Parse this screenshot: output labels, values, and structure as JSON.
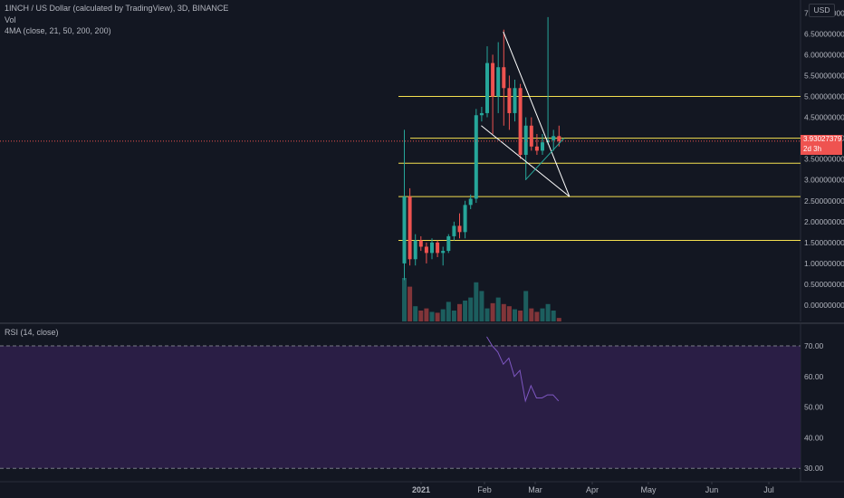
{
  "header": {
    "symbol_line": "1INCH / US Dollar (calculated by TradingView), 3D, BINANCE",
    "vol_label": "Vol",
    "ma_label": "4MA (close, 21, 50, 200, 200)",
    "rsi_label": "RSI (14, close)"
  },
  "currency_badge": "USD",
  "last_price": {
    "value": "3.93027379",
    "countdown": "2d 3h"
  },
  "colors": {
    "background": "#131722",
    "up": "#26a69a",
    "down": "#ef5350",
    "level_line": "#f5e050",
    "rsi_band": "#2a1e45",
    "rsi_line": "#7e57c2"
  },
  "chart_data": [
    {
      "type": "candlestick",
      "title": "1INCH / US Dollar (calculated by TradingView), 3D, BINANCE",
      "xlabel": "",
      "ylabel": "",
      "x_ticks": [
        "2021",
        "Feb",
        "Mar",
        "Apr",
        "May",
        "Jun",
        "Jul"
      ],
      "y_ticks": [
        "0.00000000",
        "0.50000000",
        "1.00000000",
        "1.50000000",
        "2.00000000",
        "2.50000000",
        "3.00000000",
        "3.50000000",
        "4.00000000",
        "4.50000000",
        "5.00000000",
        "5.50000000",
        "6.00000000",
        "6.50000000",
        "7.00000000"
      ],
      "ylim": [
        -0.25,
        7.25
      ],
      "grid": false,
      "series": [
        {
          "name": "1INCH",
          "candles": [
            {
              "o": 1.0,
              "h": 4.2,
              "l": 0.6,
              "c": 2.6
            },
            {
              "o": 2.6,
              "h": 2.8,
              "l": 0.95,
              "c": 1.1
            },
            {
              "o": 1.1,
              "h": 1.7,
              "l": 0.95,
              "c": 1.55
            },
            {
              "o": 1.55,
              "h": 1.65,
              "l": 1.3,
              "c": 1.4
            },
            {
              "o": 1.4,
              "h": 1.5,
              "l": 1.0,
              "c": 1.25
            },
            {
              "o": 1.25,
              "h": 1.6,
              "l": 1.1,
              "c": 1.5
            },
            {
              "o": 1.5,
              "h": 1.55,
              "l": 1.15,
              "c": 1.25
            },
            {
              "o": 1.25,
              "h": 1.4,
              "l": 0.95,
              "c": 1.3
            },
            {
              "o": 1.3,
              "h": 1.7,
              "l": 1.25,
              "c": 1.65
            },
            {
              "o": 1.65,
              "h": 2.0,
              "l": 1.55,
              "c": 1.9
            },
            {
              "o": 1.9,
              "h": 2.2,
              "l": 1.6,
              "c": 1.75
            },
            {
              "o": 1.75,
              "h": 2.5,
              "l": 1.6,
              "c": 2.4
            },
            {
              "o": 2.4,
              "h": 2.65,
              "l": 2.3,
              "c": 2.55
            },
            {
              "o": 2.55,
              "h": 4.7,
              "l": 2.45,
              "c": 4.55
            },
            {
              "o": 4.55,
              "h": 4.75,
              "l": 4.4,
              "c": 4.6
            },
            {
              "o": 4.6,
              "h": 6.2,
              "l": 4.5,
              "c": 5.8
            },
            {
              "o": 5.8,
              "h": 6.0,
              "l": 4.1,
              "c": 5.0
            },
            {
              "o": 5.0,
              "h": 6.3,
              "l": 4.6,
              "c": 5.7
            },
            {
              "o": 5.7,
              "h": 6.6,
              "l": 4.3,
              "c": 5.2
            },
            {
              "o": 5.2,
              "h": 5.5,
              "l": 4.2,
              "c": 4.6
            },
            {
              "o": 4.6,
              "h": 5.4,
              "l": 4.4,
              "c": 5.2
            },
            {
              "o": 5.2,
              "h": 5.3,
              "l": 3.5,
              "c": 3.6
            },
            {
              "o": 3.6,
              "h": 4.5,
              "l": 3.0,
              "c": 4.3
            },
            {
              "o": 4.3,
              "h": 4.5,
              "l": 3.7,
              "c": 3.8
            },
            {
              "o": 3.8,
              "h": 4.1,
              "l": 3.6,
              "c": 3.7
            },
            {
              "o": 3.7,
              "h": 4.1,
              "l": 3.6,
              "c": 3.9
            },
            {
              "o": 3.9,
              "h": 6.9,
              "l": 3.85,
              "c": 3.95
            },
            {
              "o": 3.95,
              "h": 4.2,
              "l": 3.7,
              "c": 4.05
            },
            {
              "o": 4.05,
              "h": 4.3,
              "l": 3.8,
              "c": 3.93
            }
          ]
        }
      ],
      "horizontal_levels": [
        5.0,
        4.0,
        3.4,
        2.6,
        1.55
      ],
      "trend_lines": [
        {
          "from": [
            18,
            6.55
          ],
          "to": [
            29,
            2.6
          ]
        },
        {
          "from": [
            14,
            4.3
          ],
          "to": [
            29,
            2.6
          ]
        },
        {
          "from": [
            22,
            3.0
          ],
          "to": [
            28,
            4.0
          ]
        }
      ]
    },
    {
      "type": "bar",
      "title": "Vol",
      "values": [
        1.0,
        0.8,
        0.35,
        0.25,
        0.3,
        0.22,
        0.2,
        0.28,
        0.45,
        0.25,
        0.4,
        0.48,
        0.55,
        0.9,
        0.7,
        0.3,
        0.42,
        0.55,
        0.4,
        0.35,
        0.28,
        0.25,
        0.7,
        0.3,
        0.22,
        0.3,
        0.4,
        0.25,
        0.08
      ],
      "up_down": [
        "up",
        "down",
        "up",
        "down",
        "down",
        "up",
        "down",
        "up",
        "up",
        "up",
        "down",
        "up",
        "up",
        "up",
        "up",
        "up",
        "down",
        "up",
        "down",
        "down",
        "up",
        "down",
        "up",
        "down",
        "down",
        "up",
        "up",
        "up",
        "down"
      ]
    },
    {
      "type": "line",
      "title": "RSI (14, close)",
      "y_ticks": [
        "70.00",
        "60.00",
        "50.00",
        "40.00",
        "30.00"
      ],
      "ylim": [
        24,
        76
      ],
      "bands": [
        30,
        70
      ],
      "x_start_index": 15,
      "values": [
        73,
        70,
        68,
        64,
        66,
        60,
        62,
        52,
        57,
        53,
        53,
        54,
        54,
        52
      ]
    }
  ]
}
